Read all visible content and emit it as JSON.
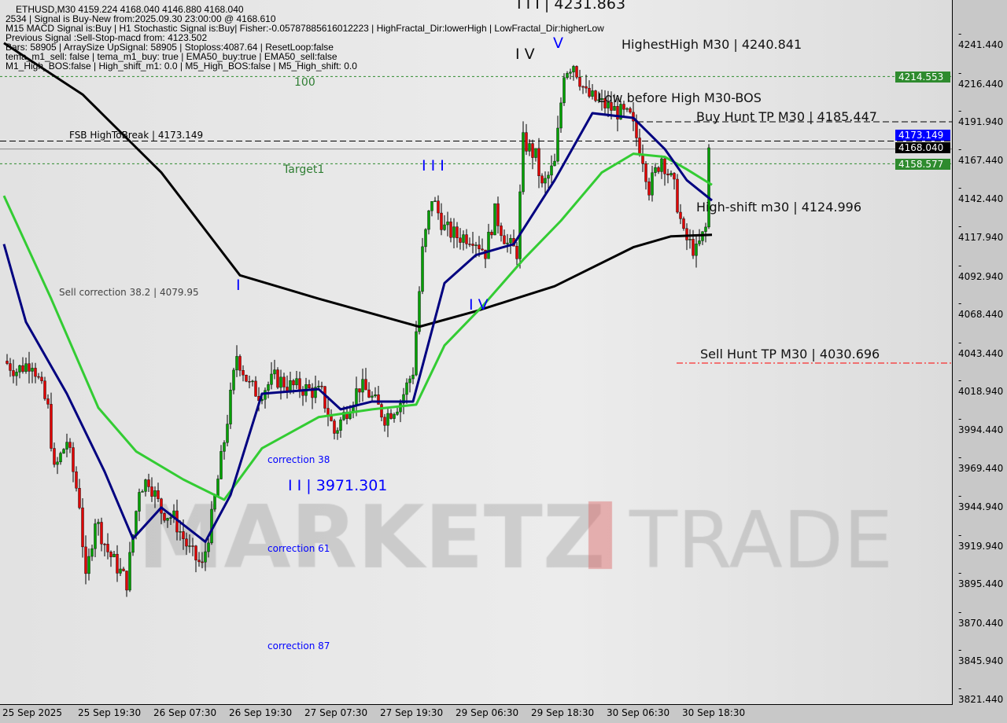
{
  "header": {
    "symbol_line": "ETHUSD,M30  4159.224 4168.040 4146.880 4168.040",
    "lines": [
      "2534 | Signal is Buy-New from:2025.09.30 23:00:00 @ 4168.610",
      "M15 MACD Signal is:Buy | H1 Stochastic Signal is:Buy| Fisher:-0.05787885616012223 | HighFractal_Dir:lowerHigh | LowFractal_Dir:higherLow",
      "Previous Signal :Sell-Stop-macd from: 4123.502",
      "Bars: 58905 | ArraySize UpSignal: 58905 | Stoploss:4087.64 | ResetLoop:false",
      "tema_m1_sell: false | tema_m1_buy: true | EMA50_buy:true | EMA50_sell:false",
      "M1_High_BOS:false | High_shift_m1: 0.0 | M5_High_BOS:false | M5_High_shift: 0.0"
    ]
  },
  "annotations": {
    "wave_iii_top": "I I I | 4231.863",
    "wave_iv_top": "I V",
    "wave_v": "V",
    "highest_high": "HighestHigh    M30 | 4240.841",
    "level_100": "100",
    "low_before_high": "Low before High    M30-BOS",
    "buy_hunt": "Buy Hunt TP M30 | 4185.447",
    "fsb": "FSB HighToBreak | 4173.149",
    "target1": "Target1",
    "wave_iii_mid": "I I I",
    "high_shift": "High-shift m30 | 4124.996",
    "wave_i": "I",
    "sell_correction": "Sell correction 38.2 | 4079.95",
    "wave_iv_low": "I V",
    "sell_hunt": "Sell Hunt TP M30 | 4030.696",
    "correction_38": "correction 38",
    "wave_ii": "I I | 3971.301",
    "correction_61": "correction 61",
    "correction_87": "correction 87"
  },
  "watermark": "MARKETZ TRADE",
  "price_tags": {
    "level_green_top": "4214.553",
    "fsb": "4173.149",
    "current": "4168.040",
    "level_green_low": "4158.577"
  },
  "colors": {
    "bull": "#00a000",
    "bear": "#e00000",
    "ma_slow": "#000000",
    "ma_mid": "#33cc33",
    "ma_fast": "#000080",
    "level_green": "#2e8b2e",
    "fsb": "#0000ff",
    "sell_hunt": "#ff0000"
  },
  "chart_data": {
    "type": "candlestick",
    "symbol": "ETHUSD",
    "timeframe": "M30",
    "ylim": [
      3810,
      4262
    ],
    "y_ticks": [
      "4241.440",
      "4216.440",
      "4191.940",
      "4167.440",
      "4142.440",
      "4117.940",
      "4092.940",
      "4068.440",
      "4043.440",
      "4018.940",
      "3994.440",
      "3969.440",
      "3944.940",
      "3919.940",
      "3895.440",
      "3870.440",
      "3845.940",
      "3821.440"
    ],
    "x_ticks": [
      "25 Sep 2025",
      "25 Sep 19:30",
      "26 Sep 07:30",
      "26 Sep 19:30",
      "27 Sep 07:30",
      "27 Sep 19:30",
      "29 Sep 06:30",
      "29 Sep 18:30",
      "30 Sep 06:30",
      "30 Sep 18:30"
    ],
    "bars_per_tick": 24,
    "close_path": [
      [
        1,
        4032
      ],
      [
        5,
        4026
      ],
      [
        10,
        4032
      ],
      [
        15,
        4001
      ],
      [
        17,
        3961
      ],
      [
        21,
        3981
      ],
      [
        25,
        3941
      ],
      [
        27,
        3890
      ],
      [
        30,
        3931
      ],
      [
        34,
        3910
      ],
      [
        37,
        3900
      ],
      [
        40,
        3890
      ],
      [
        44,
        3951
      ],
      [
        47,
        3956
      ],
      [
        51,
        3936
      ],
      [
        55,
        3931
      ],
      [
        60,
        3910
      ],
      [
        64,
        3900
      ],
      [
        67,
        3931
      ],
      [
        71,
        3981
      ],
      [
        75,
        4036
      ],
      [
        79,
        4016
      ],
      [
        82,
        4011
      ],
      [
        87,
        4021
      ],
      [
        92,
        4016
      ],
      [
        97,
        4014
      ],
      [
        102,
        4011
      ],
      [
        106,
        3986
      ],
      [
        110,
        4001
      ],
      [
        114,
        4016
      ],
      [
        117,
        4011
      ],
      [
        122,
        3996
      ],
      [
        127,
        4006
      ],
      [
        131,
        4026
      ],
      [
        134,
        4102
      ],
      [
        137,
        4137
      ],
      [
        141,
        4117
      ],
      [
        145,
        4112
      ],
      [
        150,
        4112
      ],
      [
        154,
        4102
      ],
      [
        157,
        4127
      ],
      [
        161,
        4107
      ],
      [
        164,
        4102
      ],
      [
        166,
        4173
      ],
      [
        170,
        4163
      ],
      [
        172,
        4143
      ],
      [
        176,
        4158
      ],
      [
        179,
        4218
      ],
      [
        182,
        4223
      ],
      [
        186,
        4203
      ],
      [
        190,
        4198
      ],
      [
        195,
        4193
      ],
      [
        200,
        4188
      ],
      [
        204,
        4163
      ],
      [
        206,
        4143
      ],
      [
        210,
        4163
      ],
      [
        214,
        4143
      ],
      [
        217,
        4112
      ],
      [
        221,
        4102
      ],
      [
        224,
        4117
      ],
      [
        225,
        4168
      ]
    ],
    "moving_averages": [
      {
        "color_key": "ma_slow",
        "points": [
          [
            0,
            4236
          ],
          [
            25,
            4203
          ],
          [
            50,
            4153
          ],
          [
            75,
            4087
          ],
          [
            100,
            4072
          ],
          [
            132,
            4054
          ],
          [
            150,
            4064
          ],
          [
            175,
            4080
          ],
          [
            200,
            4105
          ],
          [
            212,
            4112
          ],
          [
            225,
            4113
          ]
        ]
      },
      {
        "color_key": "ma_mid",
        "points": [
          [
            0,
            4138
          ],
          [
            15,
            4072
          ],
          [
            30,
            4002
          ],
          [
            42,
            3974
          ],
          [
            57,
            3956
          ],
          [
            70,
            3943
          ],
          [
            82,
            3976
          ],
          [
            100,
            3996
          ],
          [
            117,
            4001
          ],
          [
            131,
            4004
          ],
          [
            140,
            4042
          ],
          [
            152,
            4067
          ],
          [
            165,
            4097
          ],
          [
            177,
            4122
          ],
          [
            190,
            4153
          ],
          [
            200,
            4165
          ],
          [
            210,
            4163
          ],
          [
            217,
            4155
          ],
          [
            225,
            4145
          ]
        ]
      },
      {
        "color_key": "ma_fast",
        "points": [
          [
            0,
            4107
          ],
          [
            7,
            4057
          ],
          [
            20,
            4011
          ],
          [
            32,
            3961
          ],
          [
            41,
            3918
          ],
          [
            50,
            3938
          ],
          [
            64,
            3916
          ],
          [
            72,
            3946
          ],
          [
            82,
            4011
          ],
          [
            100,
            4014
          ],
          [
            107,
            4001
          ],
          [
            117,
            4006
          ],
          [
            130,
            4006
          ],
          [
            140,
            4082
          ],
          [
            150,
            4100
          ],
          [
            162,
            4107
          ],
          [
            175,
            4148
          ],
          [
            187,
            4191
          ],
          [
            200,
            4188
          ],
          [
            210,
            4168
          ],
          [
            217,
            4148
          ],
          [
            225,
            4135
          ]
        ]
      }
    ],
    "levels": [
      {
        "price": 4214.553,
        "style": "dotted",
        "color_key": "level_green"
      },
      {
        "price": 4173.149,
        "style": "dashed",
        "color_key": "ma_slow"
      },
      {
        "price": 4168.04,
        "style": "solid",
        "color_key": "current"
      },
      {
        "price": 4158.577,
        "style": "dotted",
        "color_key": "level_green"
      },
      {
        "price": 4185.447,
        "style": "dashed",
        "color_key": "ma_slow"
      },
      {
        "price": 4030.696,
        "style": "dashdot",
        "color_key": "sell_hunt"
      }
    ]
  }
}
